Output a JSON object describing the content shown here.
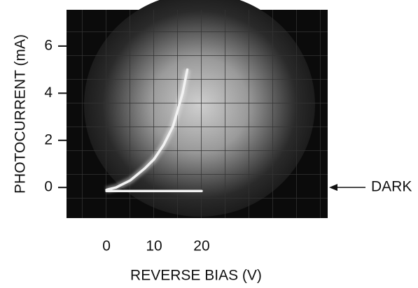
{
  "chart_data": {
    "type": "line",
    "x_label": "REVERSE BIAS (V)",
    "y_label": "PHOTOCURRENT (mA)",
    "xlim": [
      -8.4,
      46.5
    ],
    "ylim": [
      -1.3,
      7.54
    ],
    "xticks": [
      0,
      10,
      20
    ],
    "yticks": [
      0,
      2,
      4,
      6
    ],
    "series": [
      {
        "color": "#f2f2f2",
        "x": [
          0,
          2,
          5,
          8,
          10,
          12,
          14,
          15,
          16,
          17
        ],
        "values": [
          -0.1,
          0,
          0.3,
          0.8,
          1.2,
          1.8,
          2.6,
          3.3,
          4.0,
          5.0
        ]
      },
      {
        "color": "#f2f2f2",
        "x": [
          0,
          20
        ],
        "values": [
          -0.15,
          -0.15
        ]
      }
    ],
    "annotation": "DARK",
    "annotation_y": 0
  }
}
